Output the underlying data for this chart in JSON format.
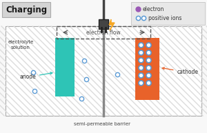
{
  "title": "Charging",
  "anode_color": "#2ec4b6",
  "cathode_color": "#e8622a",
  "barrier_color": "#888888",
  "ion_color": "#5b9bd5",
  "electron_color": "#9b59b6",
  "stripe_color": "#dcdcdc",
  "stripe_bg": "#f0f0f0",
  "title_bg": "#d4d4d4",
  "legend_bg": "#e8e8e8",
  "wire_color": "#555555",
  "plug_color": "#444444",
  "bolt_color": "#f5a623",
  "electron_flow_label": "electron flow",
  "anode_label": "anode",
  "cathode_label": "cathode",
  "electrolyte_label": "electrolyte\nsolution",
  "barrier_label": "semi-permeable barrier",
  "legend_electron": "electron",
  "legend_ions": "positive ions",
  "fig_bg": "#f8f8f8",
  "text_color": "#333333"
}
